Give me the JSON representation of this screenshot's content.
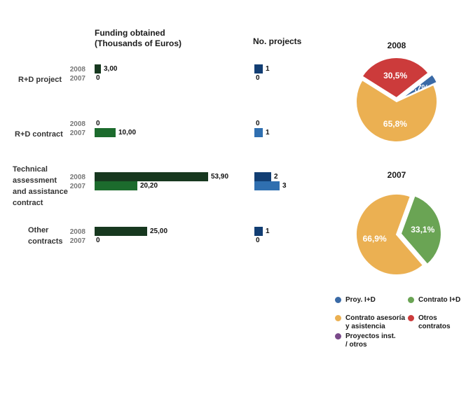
{
  "headers": {
    "funding": "Funding obtained\n(Thousands of Euros)",
    "projects": "No. projects"
  },
  "chart_data": [
    {
      "type": "bar",
      "title": "Funding obtained (Thousands of Euros)",
      "categories": [
        "R+D project",
        "R+D contract",
        "Technical assessment and assistance contract",
        "Other contracts"
      ],
      "series": [
        {
          "name": "2008",
          "values": [
            3.0,
            0,
            53.9,
            25.0
          ],
          "labels": [
            "3,00",
            "0",
            "53,90",
            "25,00"
          ],
          "color": "#17381f"
        },
        {
          "name": "2007",
          "values": [
            0,
            10.0,
            20.2,
            0
          ],
          "labels": [
            "0",
            "10,00",
            "20,20",
            "0"
          ],
          "color": "#1c6b2d"
        }
      ]
    },
    {
      "type": "bar",
      "title": "No. projects",
      "categories": [
        "R+D project",
        "R+D contract",
        "Technical assessment and assistance contract",
        "Other contracts"
      ],
      "series": [
        {
          "name": "2008",
          "values": [
            1,
            0,
            2,
            1
          ],
          "labels": [
            "1",
            "0",
            "2",
            "1"
          ],
          "color": "#123e73"
        },
        {
          "name": "2007",
          "values": [
            0,
            1,
            3,
            0
          ],
          "labels": [
            "0",
            "1",
            "3",
            "0"
          ],
          "color": "#2f6fb0"
        }
      ]
    },
    {
      "type": "pie",
      "title": "2008",
      "slices": [
        {
          "label": "3,7%",
          "value": 3.7,
          "color": "#3a6aa6"
        },
        {
          "label": "65,8%",
          "value": 65.8,
          "color": "#ebb052"
        },
        {
          "label": "30,5%",
          "value": 30.5,
          "color": "#cc3b3b"
        }
      ]
    },
    {
      "type": "pie",
      "title": "2007",
      "slices": [
        {
          "label": "33,1%",
          "value": 33.1,
          "color": "#6aa454"
        },
        {
          "label": "66,9%",
          "value": 66.9,
          "color": "#ebb052"
        }
      ]
    }
  ],
  "rows": [
    {
      "label": "R+D project",
      "y2008": "2008",
      "y2007": "2007"
    },
    {
      "label": "R+D contract",
      "y2008": "2008",
      "y2007": "2007"
    },
    {
      "label": "Technical\nassessment\nand assistance\ncontract",
      "y2008": "2008",
      "y2007": "2007"
    },
    {
      "label": "Other\ncontracts",
      "y2008": "2008",
      "y2007": "2007"
    }
  ],
  "legend": [
    {
      "label": "Proy. I+D",
      "color": "#3a6aa6"
    },
    {
      "label": "Contrato I+D",
      "color": "#6aa454"
    },
    {
      "label": "Contrato asesoría\ny asistencia",
      "color": "#ebb052"
    },
    {
      "label": "Otros\ncontratos",
      "color": "#cc3b3b"
    },
    {
      "label": "Proyectos inst.\n/ otros",
      "color": "#7a4a8a"
    }
  ]
}
